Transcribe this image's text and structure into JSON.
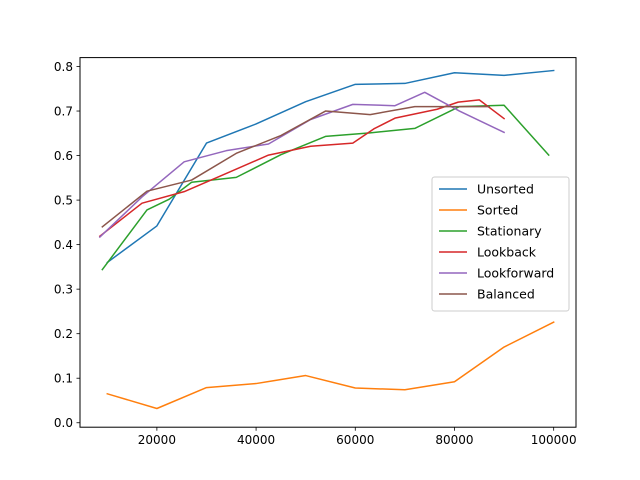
{
  "chart_data": {
    "type": "line",
    "xlim": [
      4500,
      104500
    ],
    "ylim": [
      -0.01,
      0.82
    ],
    "x_ticks": [
      20000,
      40000,
      60000,
      80000,
      100000
    ],
    "x_tick_labels": [
      "20000",
      "40000",
      "60000",
      "80000",
      "100000"
    ],
    "y_ticks": [
      0.0,
      0.1,
      0.2,
      0.3,
      0.4,
      0.5,
      0.6,
      0.7,
      0.8
    ],
    "y_tick_labels": [
      "0.0",
      "0.1",
      "0.2",
      "0.3",
      "0.4",
      "0.5",
      "0.6",
      "0.7",
      "0.8"
    ],
    "grid": false,
    "legend_position": "center-right",
    "series": [
      {
        "name": "Unsorted",
        "color": "#1f77b4",
        "x": [
          10000,
          20000,
          30000,
          40000,
          50000,
          60000,
          70000,
          80000,
          90000,
          100000
        ],
        "y": [
          0.36,
          0.442,
          0.628,
          0.671,
          0.721,
          0.76,
          0.762,
          0.786,
          0.78,
          0.791
        ]
      },
      {
        "name": "Sorted",
        "color": "#ff7f0e",
        "x": [
          10000,
          20000,
          30000,
          40000,
          50000,
          60000,
          70000,
          80000,
          90000,
          100000
        ],
        "y": [
          0.065,
          0.032,
          0.079,
          0.088,
          0.106,
          0.078,
          0.074,
          0.092,
          0.17,
          0.226
        ]
      },
      {
        "name": "Stationary",
        "color": "#2ca02c",
        "x": [
          9000,
          18000,
          22500,
          27000,
          36000,
          45000,
          54000,
          63000,
          72000,
          81000,
          90000,
          99000
        ],
        "y": [
          0.344,
          0.478,
          0.502,
          0.54,
          0.551,
          0.602,
          0.643,
          0.651,
          0.661,
          0.71,
          0.713,
          0.601
        ]
      },
      {
        "name": "Lookback",
        "color": "#d62728",
        "x": [
          8500,
          17000,
          25500,
          34000,
          42500,
          51000,
          59500,
          63750,
          68000,
          76500,
          80750,
          85000,
          90000
        ],
        "y": [
          0.419,
          0.493,
          0.519,
          0.56,
          0.601,
          0.621,
          0.628,
          0.66,
          0.684,
          0.704,
          0.72,
          0.725,
          0.683
        ]
      },
      {
        "name": "Lookforward",
        "color": "#9467bd",
        "x": [
          8500,
          17000,
          25500,
          34000,
          42500,
          51000,
          59500,
          68000,
          74000,
          81000,
          90000
        ],
        "y": [
          0.417,
          0.507,
          0.586,
          0.611,
          0.626,
          0.681,
          0.715,
          0.712,
          0.742,
          0.7,
          0.652
        ]
      },
      {
        "name": "Balanced",
        "color": "#8c564b",
        "x": [
          9000,
          18000,
          27000,
          36000,
          45000,
          54000,
          63000,
          72000,
          81000,
          87000
        ],
        "y": [
          0.44,
          0.52,
          0.545,
          0.605,
          0.645,
          0.7,
          0.692,
          0.71,
          0.71,
          0.71
        ]
      }
    ]
  }
}
